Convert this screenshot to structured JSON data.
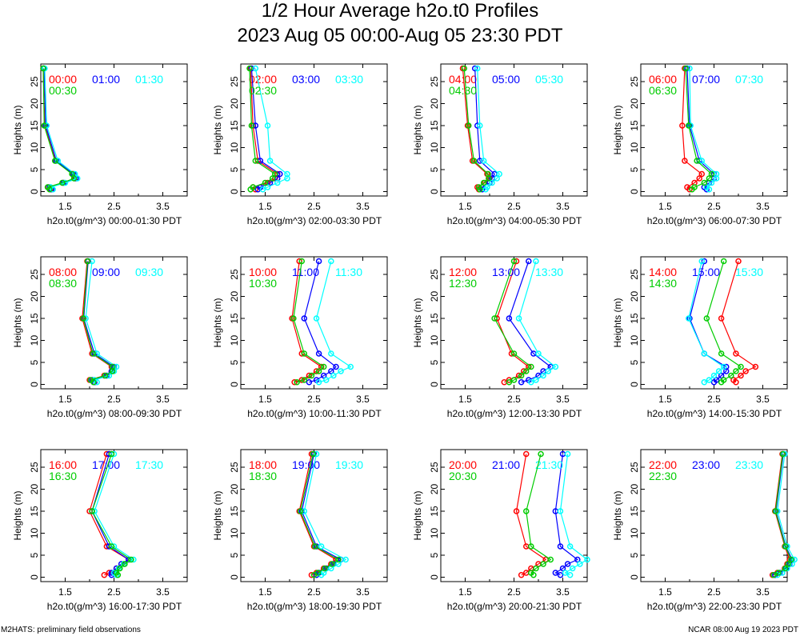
{
  "title": "1/2 Hour Average h2o.t0 Profiles",
  "subtitle": "2023 Aug 05 00:00-Aug 05 23:30 PDT",
  "footer_left": "M2HATS: preliminary field observations",
  "footer_right": "NCAR 08:00 Aug 19 2023 PDT",
  "colors": {
    "series1": "#ff0000",
    "series2": "#0000ff",
    "series3": "#00ffff",
    "series4": "#00cc00"
  },
  "chart_data": [
    {
      "type": "line",
      "xlabel": "h2o.t0(g/m^3) 00:00-01:30 PDT",
      "ylabel": "Heights (m)",
      "xlim": [
        1.0,
        4.0
      ],
      "ylim": [
        -1,
        29
      ],
      "xticks": [
        "1.5",
        "2.5",
        "3.5"
      ],
      "yticks": [
        "0",
        "5",
        "10",
        "15",
        "20",
        "25"
      ],
      "heights": [
        0.5,
        1,
        2,
        3,
        4,
        7,
        15,
        28
      ],
      "series": [
        {
          "name": "00:00",
          "values": [
            1.2,
            1.15,
            1.45,
            1.7,
            1.65,
            1.3,
            1.08,
            1.05
          ]
        },
        {
          "name": "01:00",
          "values": [
            1.22,
            1.18,
            1.47,
            1.72,
            1.67,
            1.32,
            1.1,
            1.07
          ]
        },
        {
          "name": "01:30",
          "values": [
            1.25,
            1.2,
            1.5,
            1.75,
            1.7,
            1.35,
            1.12,
            1.08
          ]
        },
        {
          "name": "00:30",
          "values": [
            1.18,
            1.14,
            1.44,
            1.68,
            1.64,
            1.29,
            1.07,
            1.05
          ]
        }
      ]
    },
    {
      "type": "line",
      "xlabel": "h2o.t0(g/m^3) 02:00-03:30 PDT",
      "ylabel": "Heights (m)",
      "xlim": [
        1.0,
        4.0
      ],
      "ylim": [
        -1,
        29
      ],
      "xticks": [
        "1.5",
        "2.5",
        "3.5"
      ],
      "yticks": [
        "0",
        "5",
        "10",
        "15",
        "20",
        "25"
      ],
      "heights": [
        0.5,
        1,
        2,
        3,
        4,
        7,
        15,
        28
      ],
      "series": [
        {
          "name": "02:00",
          "values": [
            1.3,
            1.25,
            1.55,
            1.7,
            1.75,
            1.35,
            1.25,
            1.2
          ]
        },
        {
          "name": "03:00",
          "values": [
            1.35,
            1.4,
            1.6,
            1.75,
            1.8,
            1.4,
            1.3,
            1.22
          ]
        },
        {
          "name": "03:30",
          "values": [
            1.45,
            1.55,
            1.75,
            1.95,
            1.95,
            1.6,
            1.55,
            1.3
          ]
        },
        {
          "name": "02:30",
          "values": [
            1.2,
            1.25,
            1.5,
            1.65,
            1.7,
            1.3,
            1.22,
            1.18
          ]
        }
      ]
    },
    {
      "type": "line",
      "xlabel": "h2o.t0(g/m^3) 04:00-05:30 PDT",
      "ylabel": "Heights (m)",
      "xlim": [
        1.0,
        4.0
      ],
      "ylim": [
        -1,
        29
      ],
      "xticks": [
        "1.5",
        "2.5",
        "3.5"
      ],
      "yticks": [
        "0",
        "5",
        "10",
        "15",
        "20",
        "25"
      ],
      "heights": [
        0.5,
        1,
        2,
        3,
        4,
        7,
        15,
        28
      ],
      "series": [
        {
          "name": "04:00",
          "values": [
            1.78,
            1.75,
            1.9,
            2.0,
            1.95,
            1.65,
            1.55,
            1.45
          ]
        },
        {
          "name": "05:00",
          "values": [
            1.85,
            1.85,
            2.0,
            2.05,
            2.1,
            1.8,
            1.75,
            1.7
          ]
        },
        {
          "name": "05:30",
          "values": [
            1.92,
            1.95,
            2.05,
            2.15,
            2.2,
            1.88,
            1.8,
            1.75
          ]
        },
        {
          "name": "04:30",
          "values": [
            1.8,
            1.78,
            1.88,
            1.98,
            1.97,
            1.68,
            1.57,
            1.48
          ]
        }
      ]
    },
    {
      "type": "line",
      "xlabel": "h2o.t0(g/m^3) 06:00-07:30 PDT",
      "ylabel": "Heights (m)",
      "xlim": [
        1.0,
        4.0
      ],
      "ylim": [
        -1,
        29
      ],
      "xticks": [
        "1.5",
        "2.5",
        "3.5"
      ],
      "yticks": [
        "0",
        "5",
        "10",
        "15",
        "20",
        "25"
      ],
      "heights": [
        0.5,
        1,
        2,
        3,
        4,
        7,
        15,
        28
      ],
      "series": [
        {
          "name": "06:00",
          "values": [
            2.0,
            1.95,
            2.1,
            2.2,
            2.25,
            1.9,
            1.85,
            1.9
          ]
        },
        {
          "name": "07:00",
          "values": [
            2.35,
            2.3,
            2.4,
            2.5,
            2.5,
            2.2,
            2.0,
            1.95
          ]
        },
        {
          "name": "07:30",
          "values": [
            2.4,
            2.35,
            2.45,
            2.55,
            2.55,
            2.25,
            2.02,
            2.0
          ]
        },
        {
          "name": "06:30",
          "values": [
            2.05,
            2.1,
            2.3,
            2.4,
            2.45,
            2.15,
            1.98,
            1.92
          ]
        }
      ]
    },
    {
      "type": "line",
      "xlabel": "h2o.t0(g/m^3) 08:00-09:30 PDT",
      "ylabel": "Heights (m)",
      "xlim": [
        1.0,
        4.0
      ],
      "ylim": [
        -1,
        29
      ],
      "xticks": [
        "1.5",
        "2.5",
        "3.5"
      ],
      "yticks": [
        "0",
        "5",
        "10",
        "15",
        "20",
        "25"
      ],
      "heights": [
        0.5,
        1,
        2,
        3,
        4,
        7,
        15,
        28
      ],
      "series": [
        {
          "name": "08:00",
          "values": [
            2.1,
            2.0,
            2.3,
            2.45,
            2.45,
            2.05,
            1.85,
            1.95
          ]
        },
        {
          "name": "09:00",
          "values": [
            2.1,
            2.05,
            2.35,
            2.45,
            2.5,
            2.1,
            1.88,
            1.97
          ]
        },
        {
          "name": "09:30",
          "values": [
            2.15,
            2.1,
            2.4,
            2.5,
            2.55,
            2.15,
            1.92,
            2.05
          ]
        },
        {
          "name": "08:30",
          "values": [
            2.08,
            2.02,
            2.32,
            2.47,
            2.47,
            2.07,
            1.87,
            1.96
          ]
        }
      ]
    },
    {
      "type": "line",
      "xlabel": "h2o.t0(g/m^3) 10:00-11:30 PDT",
      "ylabel": "Heights (m)",
      "xlim": [
        1.0,
        4.0
      ],
      "ylim": [
        -1,
        29
      ],
      "xticks": [
        "1.5",
        "2.5",
        "3.5"
      ],
      "yticks": [
        "0",
        "5",
        "10",
        "15",
        "20",
        "25"
      ],
      "heights": [
        0.5,
        1,
        2,
        3,
        4,
        7,
        15,
        28
      ],
      "series": [
        {
          "name": "10:00",
          "values": [
            2.1,
            2.25,
            2.4,
            2.55,
            2.65,
            2.25,
            2.05,
            2.2
          ]
        },
        {
          "name": "11:00",
          "values": [
            2.4,
            2.55,
            2.7,
            2.85,
            2.95,
            2.6,
            2.3,
            2.6
          ]
        },
        {
          "name": "11:30",
          "values": [
            2.6,
            2.75,
            2.9,
            3.05,
            3.25,
            2.85,
            2.55,
            2.85
          ]
        },
        {
          "name": "10:30",
          "values": [
            2.15,
            2.3,
            2.45,
            2.6,
            2.7,
            2.3,
            2.08,
            2.25
          ]
        }
      ]
    },
    {
      "type": "line",
      "xlabel": "h2o.t0(g/m^3) 12:00-13:30 PDT",
      "ylabel": "Heights (m)",
      "xlim": [
        1.0,
        4.0
      ],
      "ylim": [
        -1,
        29
      ],
      "xticks": [
        "1.5",
        "2.5",
        "3.5"
      ],
      "yticks": [
        "0",
        "5",
        "10",
        "15",
        "20",
        "25"
      ],
      "heights": [
        0.5,
        1,
        2,
        3,
        4,
        7,
        15,
        28
      ],
      "series": [
        {
          "name": "12:00",
          "values": [
            2.3,
            2.4,
            2.6,
            2.7,
            2.8,
            2.45,
            2.15,
            2.55
          ]
        },
        {
          "name": "13:00",
          "values": [
            2.65,
            2.8,
            3.0,
            3.1,
            3.25,
            2.9,
            2.4,
            2.8
          ]
        },
        {
          "name": "13:30",
          "values": [
            2.85,
            2.95,
            3.1,
            3.2,
            3.35,
            3.0,
            2.6,
            2.95
          ]
        },
        {
          "name": "12:30",
          "values": [
            2.4,
            2.5,
            2.65,
            2.75,
            2.85,
            2.5,
            2.1,
            2.5
          ]
        }
      ]
    },
    {
      "type": "line",
      "xlabel": "h2o.t0(g/m^3) 14:00-15:30 PDT",
      "ylabel": "Heights (m)",
      "xlim": [
        1.0,
        4.0
      ],
      "ylim": [
        -1,
        29
      ],
      "xticks": [
        "1.5",
        "2.5",
        "3.5"
      ],
      "yticks": [
        "0",
        "5",
        "10",
        "15",
        "20",
        "25"
      ],
      "heights": [
        0.5,
        1,
        2,
        3,
        4,
        7,
        15,
        28
      ],
      "series": [
        {
          "name": "14:00",
          "values": [
            2.95,
            2.9,
            3.05,
            3.15,
            3.35,
            2.95,
            2.65,
            3.0
          ]
        },
        {
          "name": "15:00",
          "values": [
            2.5,
            2.55,
            2.65,
            2.75,
            2.75,
            2.3,
            2.0,
            2.3
          ]
        },
        {
          "name": "15:30",
          "values": [
            2.3,
            2.4,
            2.5,
            2.6,
            2.7,
            2.3,
            1.98,
            2.25
          ]
        },
        {
          "name": "14:30",
          "values": [
            2.65,
            2.7,
            2.85,
            2.95,
            3.05,
            2.65,
            2.35,
            2.7
          ]
        }
      ]
    },
    {
      "type": "line",
      "xlabel": "h2o.t0(g/m^3) 16:00-17:30 PDT",
      "ylabel": "Heights (m)",
      "xlim": [
        1.0,
        4.0
      ],
      "ylim": [
        -1,
        29
      ],
      "xticks": [
        "1.5",
        "2.5",
        "3.5"
      ],
      "yticks": [
        "0",
        "5",
        "10",
        "15",
        "20",
        "25"
      ],
      "heights": [
        0.5,
        1,
        2,
        3,
        4,
        7,
        15,
        28
      ],
      "series": [
        {
          "name": "16:00",
          "values": [
            2.3,
            2.4,
            2.55,
            2.7,
            2.8,
            2.35,
            2.0,
            2.35
          ]
        },
        {
          "name": "17:00",
          "values": [
            2.45,
            2.45,
            2.55,
            2.65,
            2.8,
            2.4,
            2.05,
            2.4
          ]
        },
        {
          "name": "17:30",
          "values": [
            2.55,
            2.5,
            2.6,
            2.7,
            2.9,
            2.5,
            2.1,
            2.5
          ]
        },
        {
          "name": "16:30",
          "values": [
            2.58,
            2.55,
            2.62,
            2.72,
            2.85,
            2.45,
            2.05,
            2.45
          ]
        }
      ]
    },
    {
      "type": "line",
      "xlabel": "h2o.t0(g/m^3) 18:00-19:30 PDT",
      "ylabel": "Heights (m)",
      "xlim": [
        1.0,
        4.0
      ],
      "ylim": [
        -1,
        29
      ],
      "xticks": [
        "1.5",
        "2.5",
        "3.5"
      ],
      "yticks": [
        "0",
        "5",
        "10",
        "15",
        "20",
        "25"
      ],
      "heights": [
        0.5,
        1,
        2,
        3,
        4,
        7,
        15,
        28
      ],
      "series": [
        {
          "name": "18:00",
          "values": [
            2.45,
            2.55,
            2.7,
            2.85,
            2.95,
            2.5,
            2.2,
            2.45
          ]
        },
        {
          "name": "19:00",
          "values": [
            2.55,
            2.6,
            2.75,
            2.9,
            3.05,
            2.55,
            2.25,
            2.5
          ]
        },
        {
          "name": "19:30",
          "values": [
            2.65,
            2.7,
            2.85,
            3.0,
            3.15,
            2.65,
            2.3,
            2.55
          ]
        },
        {
          "name": "18:30",
          "values": [
            2.5,
            2.58,
            2.72,
            2.87,
            3.0,
            2.52,
            2.22,
            2.48
          ]
        }
      ]
    },
    {
      "type": "line",
      "xlabel": "h2o.t0(g/m^3) 20:00-21:30 PDT",
      "ylabel": "Heights (m)",
      "xlim": [
        1.0,
        4.0
      ],
      "ylim": [
        -1,
        29
      ],
      "xticks": [
        "1.5",
        "2.5",
        "3.5"
      ],
      "yticks": [
        "0",
        "5",
        "10",
        "15",
        "20",
        "25"
      ],
      "heights": [
        0.5,
        1,
        2,
        3,
        4,
        7,
        15,
        28
      ],
      "series": [
        {
          "name": "20:00",
          "values": [
            2.65,
            2.75,
            2.85,
            3.0,
            3.15,
            2.75,
            2.55,
            2.75
          ]
        },
        {
          "name": "21:00",
          "values": [
            3.45,
            3.35,
            3.5,
            3.6,
            3.8,
            3.45,
            3.35,
            3.5
          ]
        },
        {
          "name": "21:30",
          "values": [
            3.65,
            3.55,
            3.7,
            3.85,
            4.0,
            3.65,
            3.45,
            3.6
          ]
        },
        {
          "name": "20:30",
          "values": [
            2.9,
            2.85,
            2.95,
            3.1,
            3.25,
            2.85,
            2.75,
            3.05
          ]
        }
      ]
    },
    {
      "type": "line",
      "xlabel": "h2o.t0(g/m^3) 22:00-23:30 PDT",
      "ylabel": "Heights (m)",
      "xlim": [
        1.0,
        4.0
      ],
      "ylim": [
        -1,
        29
      ],
      "xticks": [
        "1.5",
        "2.5",
        "3.5"
      ],
      "yticks": [
        "0",
        "5",
        "10",
        "15",
        "20",
        "25"
      ],
      "heights": [
        0.5,
        1,
        2,
        3,
        4,
        7,
        15,
        28
      ],
      "series": [
        {
          "name": "22:00",
          "values": [
            3.7,
            3.8,
            3.95,
            4.0,
            4.05,
            3.95,
            3.75,
            3.9
          ]
        },
        {
          "name": "23:00",
          "values": [
            3.75,
            3.85,
            3.98,
            4.05,
            4.1,
            3.97,
            3.77,
            3.92
          ]
        },
        {
          "name": "23:30",
          "values": [
            3.8,
            3.9,
            4.0,
            4.1,
            4.15,
            4.0,
            3.8,
            3.95
          ]
        },
        {
          "name": "22:30",
          "values": [
            3.72,
            3.82,
            3.96,
            4.02,
            4.08,
            3.96,
            3.76,
            3.91
          ]
        }
      ]
    }
  ]
}
